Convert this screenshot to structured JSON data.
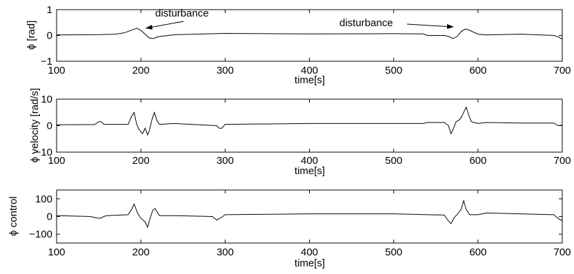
{
  "chart_data": [
    {
      "type": "line",
      "xlabel": "time[s]",
      "ylabel": "ϕ [rad]",
      "xlim": [
        100,
        700
      ],
      "ylim": [
        -1,
        1
      ],
      "xticks": [
        100,
        200,
        300,
        400,
        500,
        600,
        700
      ],
      "yticks": [
        -1,
        0,
        1
      ],
      "grid": false,
      "annotations": [
        {
          "text": "disturbance",
          "points_to": [
            205,
            0.2
          ]
        },
        {
          "text": "disturbance",
          "points_to": [
            570,
            0.15
          ]
        }
      ],
      "series": [
        {
          "x": [
            100,
            150,
            170,
            180,
            190,
            195,
            200,
            205,
            210,
            215,
            220,
            240,
            300,
            400,
            500,
            535,
            540,
            560,
            566,
            570,
            575,
            580,
            585,
            590,
            600,
            610,
            650,
            690,
            695,
            700
          ],
          "y": [
            0.02,
            0.03,
            0.05,
            0.1,
            0.22,
            0.28,
            0.2,
            0.05,
            -0.1,
            -0.12,
            -0.05,
            0.03,
            0.08,
            0.06,
            0.07,
            0.06,
            0.0,
            0.0,
            -0.05,
            -0.12,
            -0.05,
            0.15,
            0.25,
            0.2,
            0.05,
            0.02,
            0.05,
            0.0,
            -0.05,
            -0.15
          ]
        }
      ]
    },
    {
      "type": "line",
      "xlabel": "time[s]",
      "ylabel": "ϕ velocity [rad/s]",
      "xlim": [
        100,
        700
      ],
      "ylim": [
        -10,
        10
      ],
      "xticks": [
        100,
        200,
        300,
        400,
        500,
        600,
        700
      ],
      "yticks": [
        -10,
        0,
        10
      ],
      "grid": false,
      "series": [
        {
          "x": [
            100,
            130,
            145,
            150,
            153,
            156,
            160,
            185,
            189,
            192,
            195,
            198,
            202,
            205,
            208,
            210,
            213,
            216,
            219,
            222,
            240,
            290,
            293,
            296,
            300,
            400,
            500,
            535,
            540,
            560,
            565,
            568,
            571,
            574,
            577,
            580,
            583,
            586,
            589,
            592,
            600,
            610,
            650,
            690,
            695,
            700
          ],
          "y": [
            0.3,
            0.4,
            0.4,
            1.5,
            1.5,
            0.5,
            0.5,
            0.5,
            3.5,
            5,
            0.5,
            -1.5,
            -3,
            -1,
            -3.5,
            -2,
            2,
            5,
            2,
            0.5,
            0.8,
            0,
            -1,
            -1,
            0.5,
            0.8,
            0.8,
            0.8,
            1.2,
            1.2,
            0,
            -3,
            -1,
            1.5,
            2,
            3,
            5,
            7,
            4,
            1.5,
            0.8,
            1.2,
            1,
            1,
            0,
            0.2
          ]
        }
      ]
    },
    {
      "type": "line",
      "xlabel": "time[s]",
      "ylabel": "ϕ control",
      "xlim": [
        100,
        700
      ],
      "ylim": [
        -150,
        150
      ],
      "xticks": [
        100,
        200,
        300,
        400,
        500,
        600,
        700
      ],
      "yticks": [
        -100,
        0,
        100
      ],
      "grid": false,
      "series": [
        {
          "x": [
            100,
            140,
            148,
            152,
            156,
            160,
            185,
            189,
            192,
            196,
            200,
            205,
            208,
            211,
            214,
            217,
            222,
            240,
            285,
            290,
            294,
            300,
            400,
            500,
            560,
            564,
            568,
            572,
            576,
            580,
            583,
            586,
            590,
            600,
            610,
            650,
            690,
            695,
            700
          ],
          "y": [
            5,
            0,
            -8,
            -10,
            0,
            5,
            10,
            40,
            70,
            20,
            -10,
            -30,
            -60,
            -10,
            35,
            45,
            5,
            5,
            0,
            -20,
            -10,
            10,
            15,
            15,
            8,
            -20,
            -40,
            -5,
            15,
            40,
            90,
            40,
            10,
            10,
            20,
            15,
            10,
            -10,
            -25
          ]
        }
      ]
    }
  ]
}
